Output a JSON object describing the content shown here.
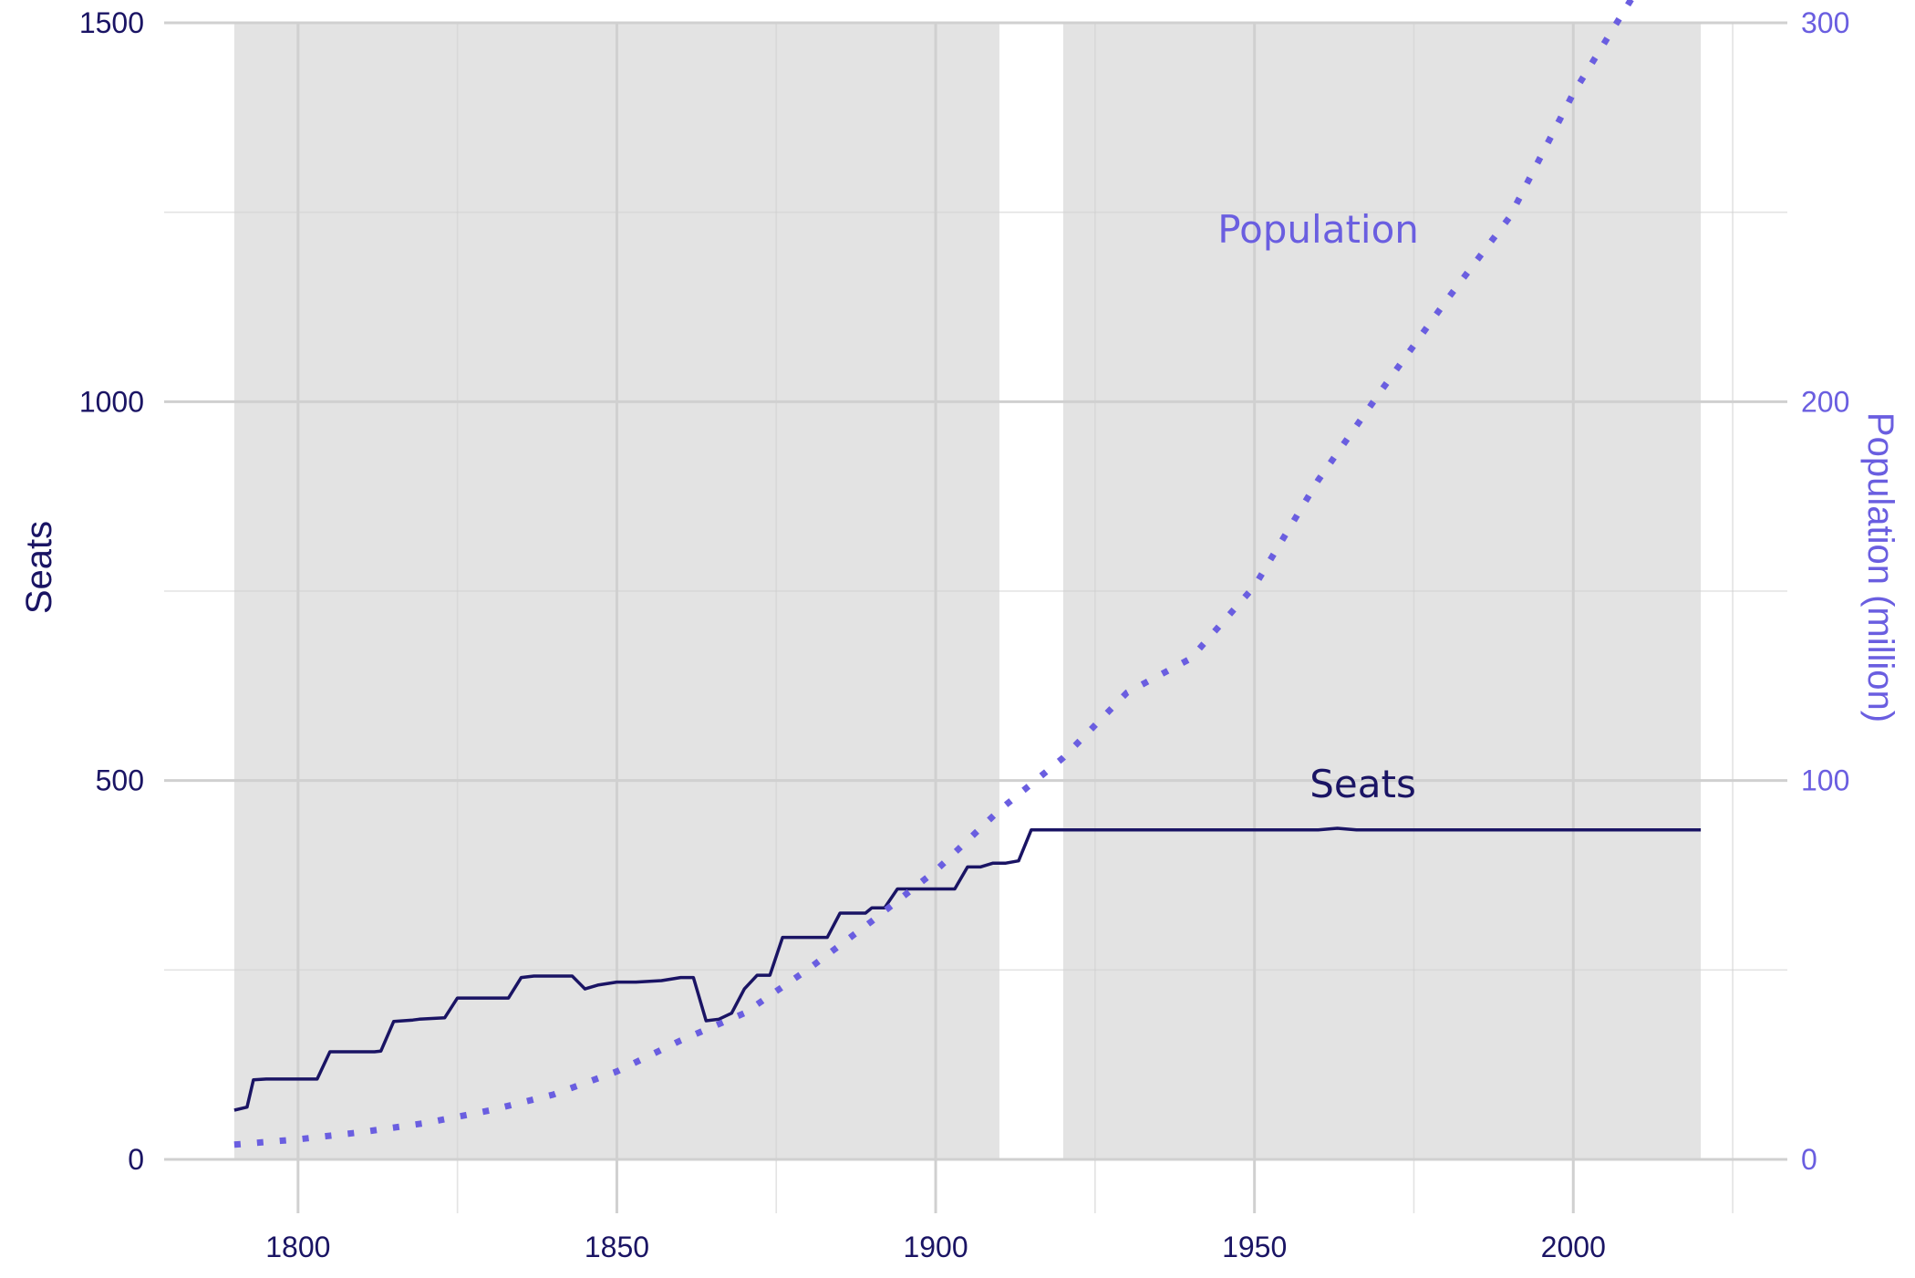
{
  "chart_data": {
    "type": "line",
    "title": "",
    "x_ticks": [
      1800,
      1850,
      1900,
      1950,
      2000
    ],
    "xlim": [
      1779,
      2035
    ],
    "y_left": {
      "label": "Seats",
      "ticks": [
        0,
        500,
        1000,
        1500
      ],
      "lim": [
        -70,
        1500
      ],
      "color": "#1a1464"
    },
    "y_right": {
      "label": "Population (million)",
      "ticks": [
        0,
        100,
        200,
        300
      ],
      "lim": [
        -14,
        300
      ],
      "color": "#6a5ee0"
    },
    "shaded_periods": [
      [
        1790,
        1910
      ],
      [
        1920,
        2020
      ]
    ],
    "shade_color": "#e3e3e3",
    "series": [
      {
        "name": "Seats",
        "axis": "left",
        "style": "solid",
        "color": "#1a1464",
        "label_at": [
          1967,
          478
        ],
        "points": [
          [
            1790,
            65
          ],
          [
            1792,
            69
          ],
          [
            1793,
            105
          ],
          [
            1795,
            106
          ],
          [
            1803,
            106
          ],
          [
            1805,
            142
          ],
          [
            1812,
            142
          ],
          [
            1813,
            143
          ],
          [
            1815,
            182
          ],
          [
            1818,
            184
          ],
          [
            1819,
            185
          ],
          [
            1823,
            187
          ],
          [
            1825,
            213
          ],
          [
            1833,
            213
          ],
          [
            1835,
            240
          ],
          [
            1837,
            242
          ],
          [
            1843,
            242
          ],
          [
            1845,
            225
          ],
          [
            1847,
            230
          ],
          [
            1850,
            234
          ],
          [
            1853,
            234
          ],
          [
            1857,
            236
          ],
          [
            1860,
            240
          ],
          [
            1862,
            240
          ],
          [
            1864,
            183
          ],
          [
            1866,
            185
          ],
          [
            1868,
            193
          ],
          [
            1870,
            225
          ],
          [
            1872,
            243
          ],
          [
            1874,
            243
          ],
          [
            1876,
            293
          ],
          [
            1878,
            293
          ],
          [
            1883,
            293
          ],
          [
            1885,
            325
          ],
          [
            1889,
            325
          ],
          [
            1890,
            332
          ],
          [
            1892,
            332
          ],
          [
            1894,
            357
          ],
          [
            1901,
            357
          ],
          [
            1903,
            357
          ],
          [
            1905,
            386
          ],
          [
            1907,
            386
          ],
          [
            1909,
            391
          ],
          [
            1911,
            391
          ],
          [
            1913,
            394
          ],
          [
            1915,
            435
          ],
          [
            1960,
            435
          ],
          [
            1963,
            437
          ],
          [
            1966,
            435
          ],
          [
            2020,
            435
          ]
        ]
      },
      {
        "name": "Population",
        "axis": "right",
        "style": "dotted",
        "color": "#6a5ee0",
        "label_at": [
          1960,
          242
        ],
        "points": [
          [
            1790,
            3.9
          ],
          [
            1800,
            5.3
          ],
          [
            1810,
            7.2
          ],
          [
            1820,
            9.6
          ],
          [
            1830,
            12.9
          ],
          [
            1840,
            17.1
          ],
          [
            1850,
            23.2
          ],
          [
            1860,
            31.4
          ],
          [
            1870,
            38.6
          ],
          [
            1880,
            50.2
          ],
          [
            1890,
            62.9
          ],
          [
            1900,
            76.2
          ],
          [
            1910,
            92.2
          ],
          [
            1920,
            106.0
          ],
          [
            1930,
            123.2
          ],
          [
            1940,
            132.2
          ],
          [
            1950,
            151.3
          ],
          [
            1960,
            179.3
          ],
          [
            1970,
            203.2
          ],
          [
            1980,
            226.5
          ],
          [
            1990,
            248.7
          ],
          [
            2000,
            281.4
          ],
          [
            2010,
            308.7
          ],
          [
            2020,
            331.4
          ]
        ]
      }
    ]
  }
}
